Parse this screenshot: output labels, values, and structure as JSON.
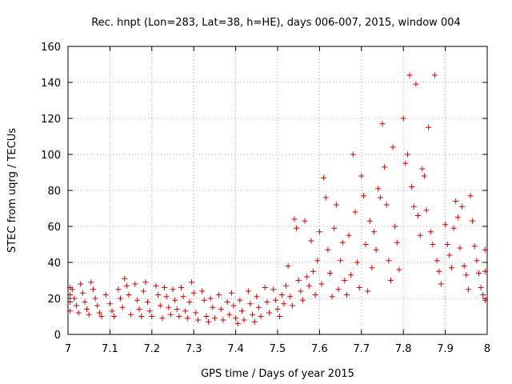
{
  "chart_data": {
    "type": "scatter",
    "title": "Rec. hnpt (Lon=283, Lat=38, h=HE), days 006-007, 2015, window 004",
    "xlabel": "GPS time / Days of year 2015",
    "ylabel": "STEC from uqrg / TECUs",
    "xlim": [
      7,
      8
    ],
    "ylim": [
      0,
      160
    ],
    "xticks": [
      "7",
      "7.1",
      "7.2",
      "7.3",
      "7.4",
      "7.5",
      "7.6",
      "7.7",
      "7.8",
      "7.9",
      "8"
    ],
    "yticks": [
      "0",
      "20",
      "40",
      "60",
      "80",
      "100",
      "120",
      "140",
      "160"
    ],
    "grid": true,
    "marker": "+",
    "marker_color": "#cc0000",
    "series": [
      {
        "points": [
          [
            7.005,
            26
          ],
          [
            7.005,
            22
          ],
          [
            7.005,
            18
          ],
          [
            7.005,
            13
          ],
          [
            7.01,
            25
          ],
          [
            7.015,
            20
          ],
          [
            7.02,
            16
          ],
          [
            7.025,
            12
          ],
          [
            7.03,
            28
          ],
          [
            7.035,
            23
          ],
          [
            7.04,
            18
          ],
          [
            7.045,
            14
          ],
          [
            7.05,
            11
          ],
          [
            7.055,
            29
          ],
          [
            7.06,
            25
          ],
          [
            7.065,
            20
          ],
          [
            7.07,
            16
          ],
          [
            7.075,
            12
          ],
          [
            7.08,
            10
          ],
          [
            7.09,
            22
          ],
          [
            7.1,
            17
          ],
          [
            7.105,
            13
          ],
          [
            7.11,
            10
          ],
          [
            7.12,
            25
          ],
          [
            7.125,
            20
          ],
          [
            7.13,
            15
          ],
          [
            7.135,
            31
          ],
          [
            7.14,
            27
          ],
          [
            7.145,
            22
          ],
          [
            7.15,
            11
          ],
          [
            7.16,
            28
          ],
          [
            7.165,
            19
          ],
          [
            7.17,
            14
          ],
          [
            7.175,
            10
          ],
          [
            7.18,
            24
          ],
          [
            7.185,
            29
          ],
          [
            7.19,
            18
          ],
          [
            7.195,
            13
          ],
          [
            7.2,
            10
          ],
          [
            7.21,
            27
          ],
          [
            7.215,
            22
          ],
          [
            7.22,
            16
          ],
          [
            7.225,
            9
          ],
          [
            7.23,
            26
          ],
          [
            7.235,
            21
          ],
          [
            7.24,
            15
          ],
          [
            7.245,
            11
          ],
          [
            7.25,
            25
          ],
          [
            7.255,
            19
          ],
          [
            7.26,
            14
          ],
          [
            7.265,
            10
          ],
          [
            7.27,
            26
          ],
          [
            7.275,
            21
          ],
          [
            7.28,
            13
          ],
          [
            7.285,
            9
          ],
          [
            7.29,
            18
          ],
          [
            7.295,
            29
          ],
          [
            7.3,
            23
          ],
          [
            7.305,
            12
          ],
          [
            7.31,
            8
          ],
          [
            7.32,
            24
          ],
          [
            7.325,
            19
          ],
          [
            7.33,
            10
          ],
          [
            7.335,
            7
          ],
          [
            7.34,
            20
          ],
          [
            7.345,
            15
          ],
          [
            7.35,
            9
          ],
          [
            7.36,
            22
          ],
          [
            7.365,
            14
          ],
          [
            7.37,
            8
          ],
          [
            7.38,
            18
          ],
          [
            7.385,
            11
          ],
          [
            7.39,
            23
          ],
          [
            7.395,
            16
          ],
          [
            7.4,
            9
          ],
          [
            7.405,
            6
          ],
          [
            7.41,
            19
          ],
          [
            7.415,
            13
          ],
          [
            7.42,
            8
          ],
          [
            7.43,
            24
          ],
          [
            7.435,
            17
          ],
          [
            7.44,
            11
          ],
          [
            7.445,
            7
          ],
          [
            7.45,
            21
          ],
          [
            7.455,
            15
          ],
          [
            7.46,
            10
          ],
          [
            7.47,
            26
          ],
          [
            7.475,
            18
          ],
          [
            7.48,
            12
          ],
          [
            7.49,
            25
          ],
          [
            7.495,
            19
          ],
          [
            7.5,
            14
          ],
          [
            7.505,
            10
          ],
          [
            7.51,
            22
          ],
          [
            7.515,
            17
          ],
          [
            7.52,
            27
          ],
          [
            7.525,
            38
          ],
          [
            7.53,
            21
          ],
          [
            7.535,
            16
          ],
          [
            7.54,
            64
          ],
          [
            7.545,
            59
          ],
          [
            7.55,
            30
          ],
          [
            7.555,
            24
          ],
          [
            7.56,
            19
          ],
          [
            7.565,
            63
          ],
          [
            7.57,
            32
          ],
          [
            7.575,
            27
          ],
          [
            7.58,
            52
          ],
          [
            7.585,
            35
          ],
          [
            7.59,
            22
          ],
          [
            7.595,
            41
          ],
          [
            7.6,
            57
          ],
          [
            7.605,
            28
          ],
          [
            7.61,
            87
          ],
          [
            7.615,
            76
          ],
          [
            7.62,
            47
          ],
          [
            7.625,
            34
          ],
          [
            7.63,
            21
          ],
          [
            7.635,
            59
          ],
          [
            7.64,
            72
          ],
          [
            7.645,
            25
          ],
          [
            7.65,
            41
          ],
          [
            7.655,
            51
          ],
          [
            7.66,
            30
          ],
          [
            7.665,
            22
          ],
          [
            7.67,
            55
          ],
          [
            7.675,
            33
          ],
          [
            7.68,
            100
          ],
          [
            7.685,
            68
          ],
          [
            7.69,
            40
          ],
          [
            7.695,
            26
          ],
          [
            7.7,
            88
          ],
          [
            7.705,
            77
          ],
          [
            7.71,
            50
          ],
          [
            7.715,
            24
          ],
          [
            7.72,
            63
          ],
          [
            7.725,
            37
          ],
          [
            7.73,
            57
          ],
          [
            7.735,
            47
          ],
          [
            7.74,
            81
          ],
          [
            7.745,
            76
          ],
          [
            7.75,
            117
          ],
          [
            7.755,
            93
          ],
          [
            7.76,
            72
          ],
          [
            7.765,
            41
          ],
          [
            7.77,
            30
          ],
          [
            7.775,
            104
          ],
          [
            7.78,
            60
          ],
          [
            7.785,
            51
          ],
          [
            7.79,
            36
          ],
          [
            7.8,
            120
          ],
          [
            7.805,
            95
          ],
          [
            7.81,
            100
          ],
          [
            7.815,
            144
          ],
          [
            7.82,
            82
          ],
          [
            7.825,
            71
          ],
          [
            7.83,
            139
          ],
          [
            7.835,
            66
          ],
          [
            7.84,
            55
          ],
          [
            7.845,
            92
          ],
          [
            7.85,
            88
          ],
          [
            7.855,
            69
          ],
          [
            7.86,
            115
          ],
          [
            7.865,
            57
          ],
          [
            7.87,
            50
          ],
          [
            7.875,
            144
          ],
          [
            7.88,
            41
          ],
          [
            7.885,
            35
          ],
          [
            7.89,
            28
          ],
          [
            7.9,
            61
          ],
          [
            7.905,
            50
          ],
          [
            7.91,
            44
          ],
          [
            7.915,
            37
          ],
          [
            7.92,
            59
          ],
          [
            7.925,
            74
          ],
          [
            7.93,
            65
          ],
          [
            7.935,
            48
          ],
          [
            7.94,
            71
          ],
          [
            7.945,
            38
          ],
          [
            7.95,
            33
          ],
          [
            7.955,
            25
          ],
          [
            7.96,
            77
          ],
          [
            7.965,
            63
          ],
          [
            7.97,
            49
          ],
          [
            7.975,
            41
          ],
          [
            7.98,
            34
          ],
          [
            7.985,
            26
          ],
          [
            7.99,
            22
          ],
          [
            7.995,
            47
          ],
          [
            7.995,
            35
          ],
          [
            7.995,
            19
          ]
        ]
      }
    ]
  }
}
